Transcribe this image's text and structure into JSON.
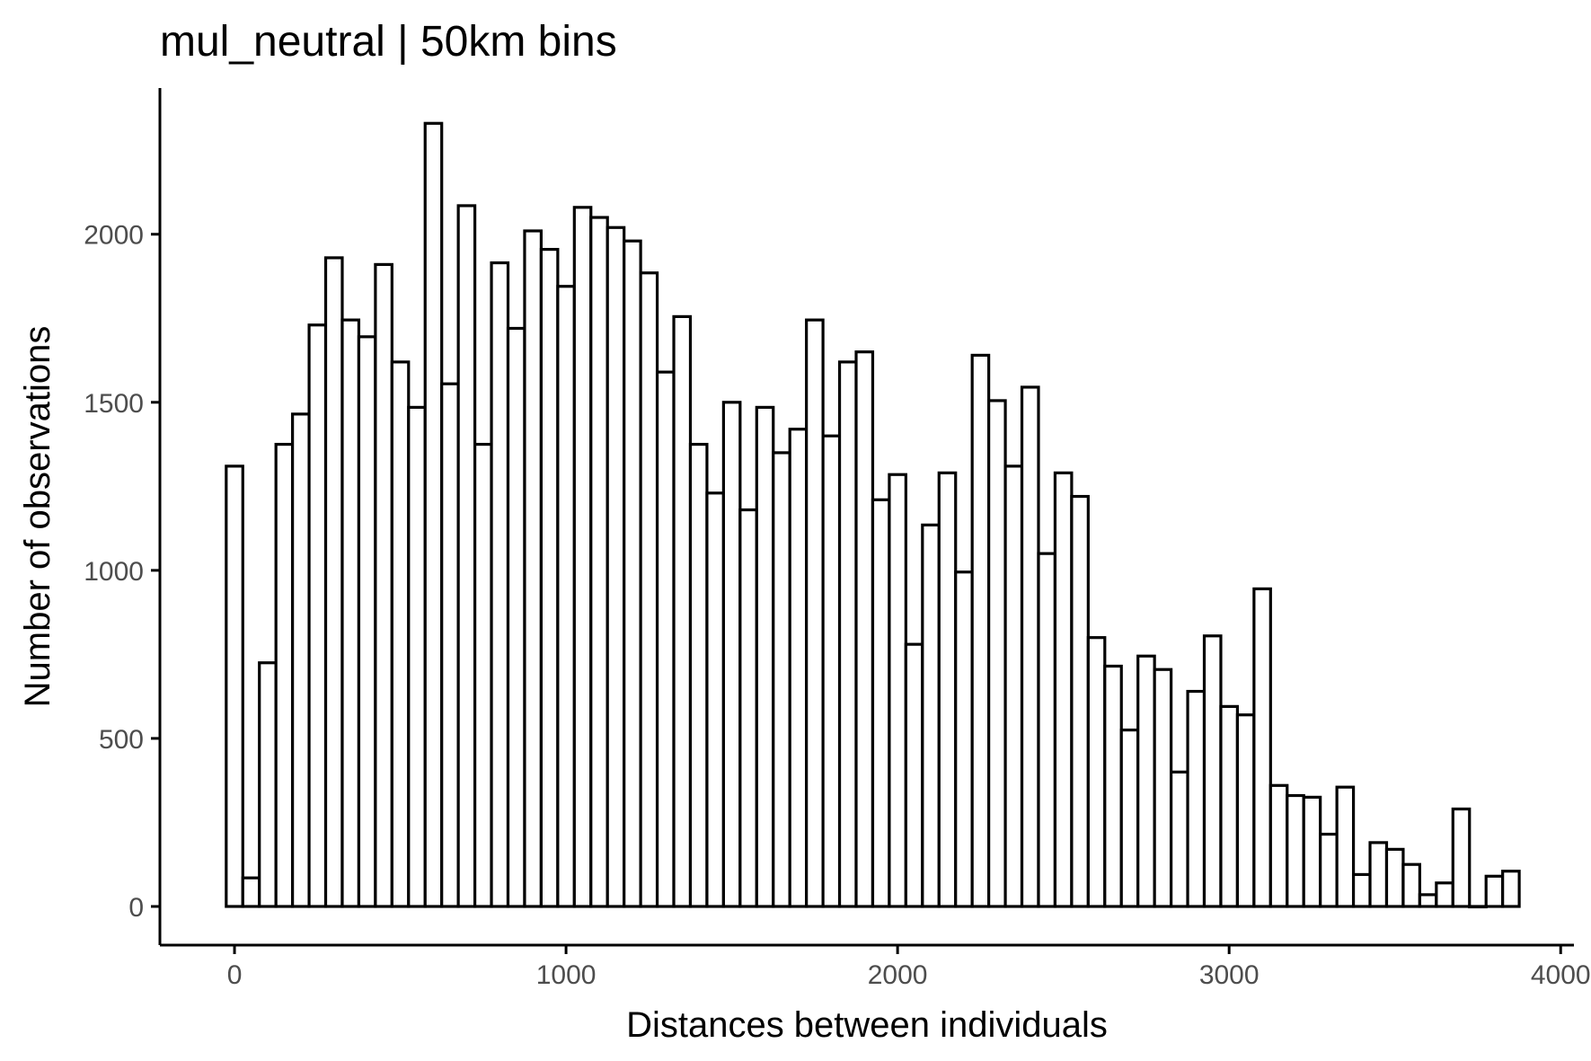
{
  "chart_data": {
    "type": "bar",
    "title": "mul_neutral | 50km bins",
    "xlabel": "Distances between individuals",
    "ylabel": "Number of observations",
    "bin_width": 50,
    "xlim": [
      -225,
      4040
    ],
    "ylim": [
      -115,
      2435
    ],
    "x_ticks": [
      0,
      1000,
      2000,
      3000,
      4000
    ],
    "y_ticks": [
      0,
      500,
      1000,
      1500,
      2000
    ],
    "grid": false,
    "legend": "none",
    "bar_fill": "#ffffff",
    "bar_stroke": "#000000",
    "series": [
      {
        "bin_centers": [
          0,
          50,
          100,
          150,
          200,
          250,
          300,
          350,
          400,
          450,
          500,
          550,
          600,
          650,
          700,
          750,
          800,
          850,
          900,
          950,
          1000,
          1050,
          1100,
          1150,
          1200,
          1250,
          1300,
          1350,
          1400,
          1450,
          1500,
          1550,
          1600,
          1650,
          1700,
          1750,
          1800,
          1850,
          1900,
          1950,
          2000,
          2050,
          2100,
          2150,
          2200,
          2250,
          2300,
          2350,
          2400,
          2450,
          2500,
          2550,
          2600,
          2650,
          2700,
          2750,
          2800,
          2850,
          2900,
          2950,
          3000,
          3050,
          3100,
          3150,
          3200,
          3250,
          3300,
          3350,
          3400,
          3450,
          3500,
          3550,
          3600,
          3650,
          3700,
          3750,
          3800,
          3850
        ],
        "values": [
          1310,
          85,
          725,
          1375,
          1465,
          1730,
          1930,
          1745,
          1695,
          1910,
          1620,
          1485,
          2330,
          1555,
          2085,
          1375,
          1915,
          1720,
          2010,
          1955,
          1845,
          2080,
          2050,
          2020,
          1980,
          1885,
          1590,
          1755,
          1375,
          1230,
          1500,
          1180,
          1485,
          1350,
          1420,
          1745,
          1400,
          1620,
          1650,
          1210,
          1285,
          780,
          1135,
          1290,
          995,
          1640,
          1505,
          1310,
          1545,
          1050,
          1290,
          1220,
          800,
          715,
          525,
          745,
          705,
          400,
          640,
          805,
          595,
          570,
          945,
          360,
          330,
          325,
          215,
          355,
          95,
          190,
          170,
          125,
          35,
          70,
          290,
          0,
          90,
          105
        ]
      }
    ]
  }
}
